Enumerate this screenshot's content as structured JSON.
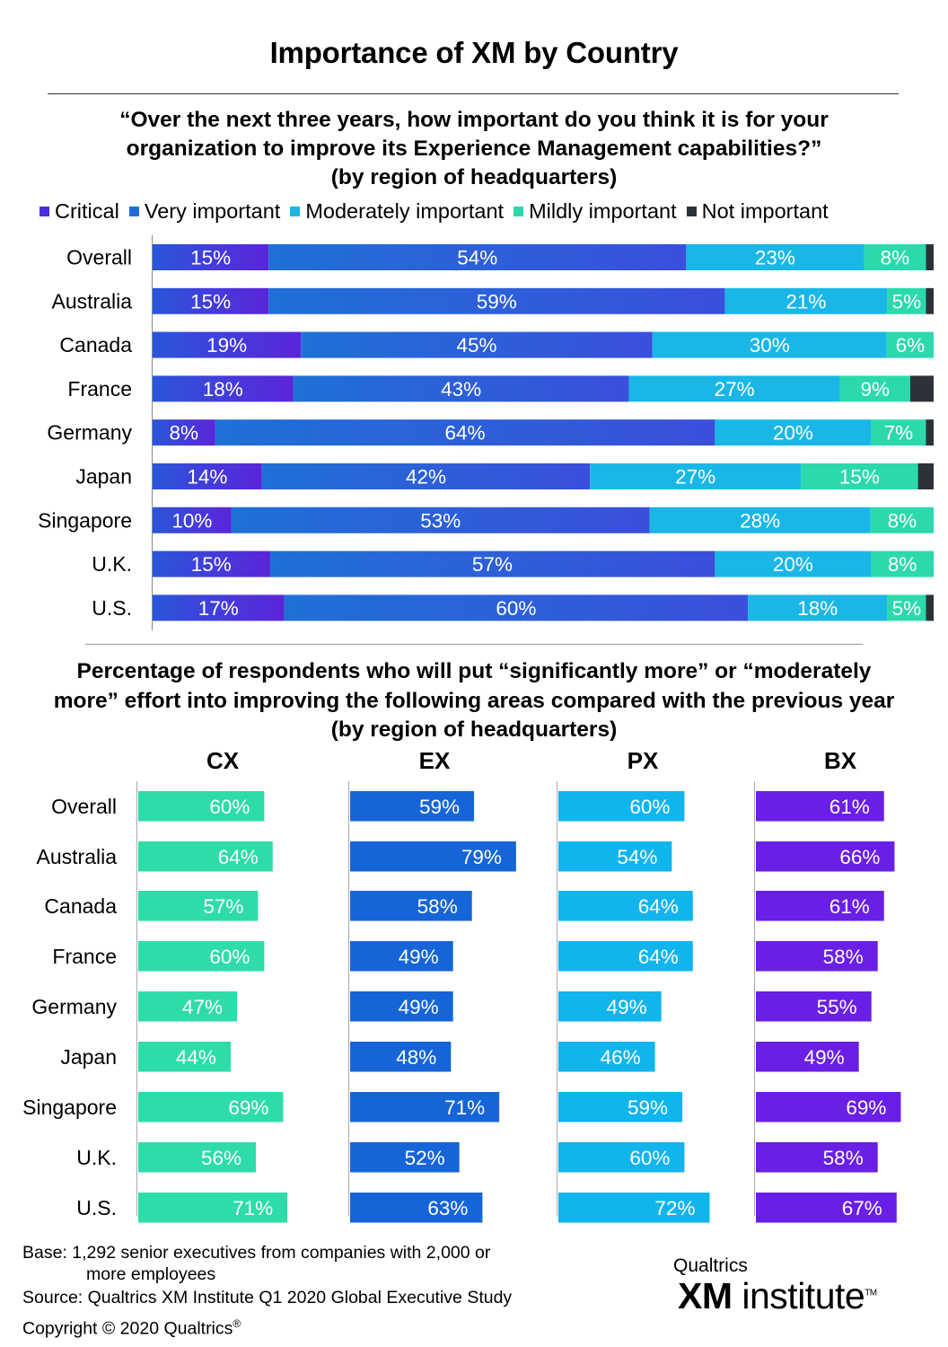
{
  "title": "Importance of XM by Country",
  "chart_data": [
    {
      "type": "bar",
      "orientation": "horizontal",
      "stacked": true,
      "title_lines": [
        "“Over the next three years, how important do you think it is for your",
        "organization to improve its Experience Management capabilities?”",
        "(by region of headquarters)"
      ],
      "categories": [
        "Overall",
        "Australia",
        "Canada",
        "France",
        "Germany",
        "Japan",
        "Singapore",
        "U.K.",
        "U.S."
      ],
      "series": [
        {
          "name": "Critical",
          "values": [
            15,
            15,
            19,
            18,
            8,
            14,
            10,
            15,
            17
          ]
        },
        {
          "name": "Very important",
          "values": [
            54,
            59,
            45,
            43,
            64,
            42,
            53,
            57,
            60
          ]
        },
        {
          "name": "Moderately important",
          "values": [
            23,
            21,
            30,
            27,
            20,
            27,
            28,
            20,
            18
          ]
        },
        {
          "name": "Mildly important",
          "values": [
            8,
            5,
            6,
            9,
            7,
            15,
            8,
            8,
            5
          ]
        },
        {
          "name": "Not important",
          "values": [
            1,
            1,
            0,
            3,
            1,
            2,
            0,
            0,
            1
          ]
        }
      ],
      "legend_position": "top",
      "colors": {
        "critical_gradient": [
          "#5b24d9",
          "#2a56da"
        ],
        "very_important_gradient": [
          "#1f70d6",
          "#3a4fdc"
        ],
        "moderately_important": "#1ab7e6",
        "mildly_important": "#2bd9ad",
        "not_important": "#2c3238"
      }
    },
    {
      "type": "bar",
      "orientation": "horizontal",
      "title_lines": [
        "Percentage of respondents who will put “significantly more” or “moderately",
        "more” effort into improving the following areas compared with the previous year",
        "(by region of headquarters)"
      ],
      "categories": [
        "Overall",
        "Australia",
        "Canada",
        "France",
        "Germany",
        "Japan",
        "Singapore",
        "U.K.",
        "U.S."
      ],
      "panels": [
        {
          "name": "CX",
          "color": "#2edcaa",
          "values": [
            60,
            64,
            57,
            60,
            47,
            44,
            69,
            56,
            71
          ]
        },
        {
          "name": "EX",
          "color": "#1665d8",
          "values": [
            59,
            79,
            58,
            49,
            49,
            48,
            71,
            52,
            63
          ]
        },
        {
          "name": "PX",
          "color": "#10b5ee",
          "values": [
            60,
            54,
            64,
            64,
            49,
            46,
            59,
            60,
            72
          ]
        },
        {
          "name": "BX",
          "color": "#6a1fe6",
          "values": [
            61,
            66,
            61,
            58,
            55,
            49,
            69,
            58,
            67
          ]
        }
      ],
      "value_suffix": "%"
    }
  ],
  "footer": {
    "base_line1": "Base: 1,292 senior executives from companies with 2,000 or",
    "base_line2": "more employees",
    "source": "Source: Qualtrics XM Institute Q1 2020 Global Executive Study",
    "copyright": "Copyright © 2020 Qualtrics",
    "copyright_mark": "®"
  },
  "logo": {
    "small": "Qualtrics",
    "big_bold": "XM",
    "big_rest": " institute",
    "tm": "TM"
  }
}
